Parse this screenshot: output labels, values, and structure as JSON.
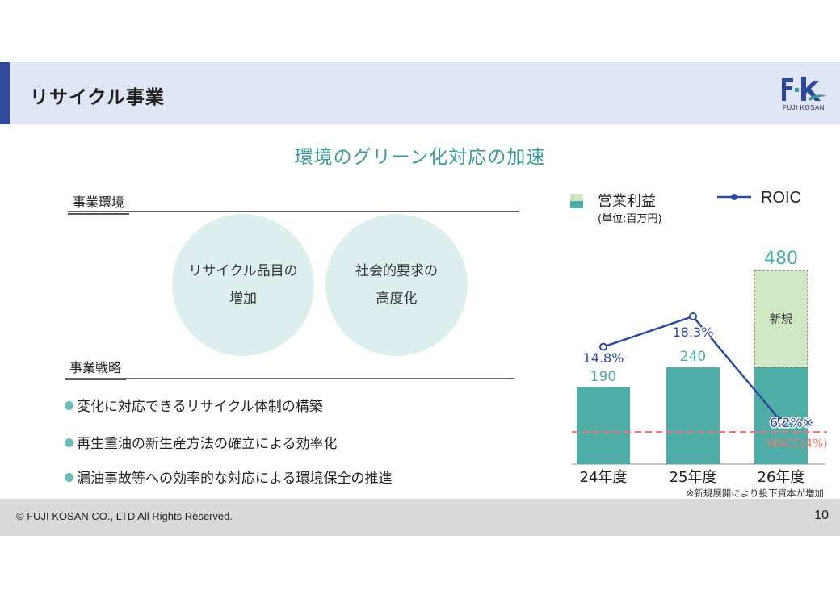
{
  "header": {
    "title": "リサイクル事業",
    "logo_text": "FUJI KOSAN"
  },
  "subtitle": "環境のグリーン化対応の加速",
  "environment": {
    "label": "事業環境",
    "circles": [
      {
        "line1": "リサイクル品目の",
        "line2": "増加"
      },
      {
        "line1": "社会的要求の",
        "line2": "高度化"
      }
    ]
  },
  "strategy": {
    "label": "事業戦略",
    "bullets": [
      "変化に対応できるリサイクル体制の構築",
      "再生重油の新生産方法の確立による効率化",
      "漏油事故等への効率的な対応による環境保全の推進"
    ]
  },
  "legend": {
    "operating_profit": "営業利益",
    "unit": "(単位:百万円)",
    "roic": "ROIC"
  },
  "chart_data": {
    "type": "bar",
    "categories": [
      "24年度",
      "25年度",
      "26年度"
    ],
    "series": [
      {
        "name": "営業利益",
        "values": [
          190,
          240,
          480
        ],
        "new_portion": [
          0,
          0,
          240
        ],
        "new_label": "新規"
      },
      {
        "name": "ROIC",
        "type": "line",
        "values": [
          14.8,
          18.3,
          6.2
        ],
        "labels": [
          "14.8%",
          "18.3%",
          "6.2%※"
        ]
      }
    ],
    "value_labels": [
      "190",
      "240",
      "480"
    ],
    "wacc": {
      "label": "WACC(4%)",
      "value": 4
    },
    "footnote": "※新規展開により投下資本が増加",
    "colors": {
      "existing": "#4fada8",
      "new": "#cfe8c3",
      "roic": "#2f4a9a",
      "wacc": "#e87a72"
    }
  },
  "footer": {
    "copyright": "© FUJI KOSAN CO., LTD All Rights Reserved.",
    "page": "10"
  }
}
